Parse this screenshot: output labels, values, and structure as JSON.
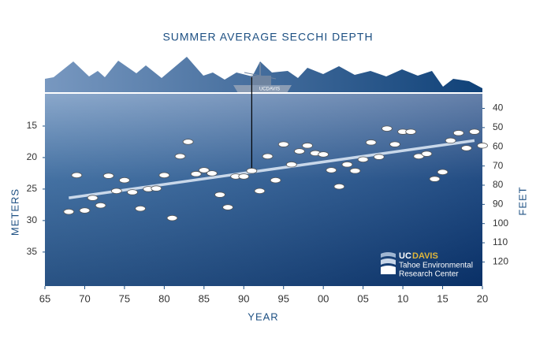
{
  "chart_data": {
    "type": "scatter",
    "title": "SUMMER AVERAGE SECCHI DEPTH",
    "x_label": "YEAR",
    "y_label": "METERS",
    "y2_label": "FEET",
    "x": [
      1968,
      1969,
      1970,
      1971,
      1972,
      1973,
      1974,
      1975,
      1976,
      1977,
      1978,
      1979,
      1980,
      1981,
      1982,
      1983,
      1984,
      1985,
      1986,
      1987,
      1988,
      1989,
      1990,
      1991,
      1992,
      1993,
      1994,
      1995,
      1996,
      1997,
      1998,
      1999,
      2000,
      2001,
      2002,
      2003,
      2004,
      2005,
      2006,
      2007,
      2008,
      2009,
      2010,
      2011,
      2012,
      2013,
      2014,
      2015,
      2016,
      2017,
      2018,
      2019,
      2020
    ],
    "values": [
      28.6,
      22.8,
      28.4,
      26.4,
      27.6,
      22.9,
      25.3,
      23.6,
      25.5,
      28.1,
      25.0,
      24.9,
      22.8,
      29.6,
      19.8,
      17.5,
      22.6,
      22.0,
      22.5,
      25.9,
      27.9,
      23.0,
      23.0,
      22.1,
      25.3,
      19.8,
      23.6,
      17.9,
      21.1,
      19.0,
      18.1,
      19.3,
      19.5,
      22.0,
      24.6,
      21.1,
      22.1,
      20.3,
      17.6,
      19.9,
      15.4,
      17.9,
      15.9,
      15.9,
      19.8,
      19.4,
      23.4,
      22.3,
      17.3,
      16.1,
      18.5,
      15.9,
      18.1
    ],
    "color": "#ffffff",
    "trendline": {
      "x": [
        1968,
        2019
      ],
      "values": [
        26.4,
        17.3
      ],
      "color": "#c9d8ea"
    },
    "xlim": [
      1965,
      2020
    ],
    "xticks": [
      {
        "value": 1965,
        "label": "65"
      },
      {
        "value": 1970,
        "label": "70"
      },
      {
        "value": 1975,
        "label": "75"
      },
      {
        "value": 1980,
        "label": "80"
      },
      {
        "value": 1985,
        "label": "85"
      },
      {
        "value": 1990,
        "label": "90"
      },
      {
        "value": 1995,
        "label": "95"
      },
      {
        "value": 2000,
        "label": "00"
      },
      {
        "value": 2005,
        "label": "05"
      },
      {
        "value": 2010,
        "label": "10"
      },
      {
        "value": 2015,
        "label": "15"
      },
      {
        "value": 2020,
        "label": "20"
      }
    ],
    "ylim": [
      9.75,
      40.4
    ],
    "y_inverted": true,
    "yticks": [
      15,
      20,
      25,
      30,
      35
    ],
    "y2lim": [
      31.99,
      132.55
    ],
    "y2ticks": [
      40,
      50,
      60,
      70,
      80,
      90,
      100,
      110,
      120
    ],
    "logo": {
      "uc": "UC",
      "davis": "DAVIS",
      "line1": "Tahoe Environmental",
      "line2": "Research Center"
    },
    "boat_label": "UCDAVIS"
  }
}
